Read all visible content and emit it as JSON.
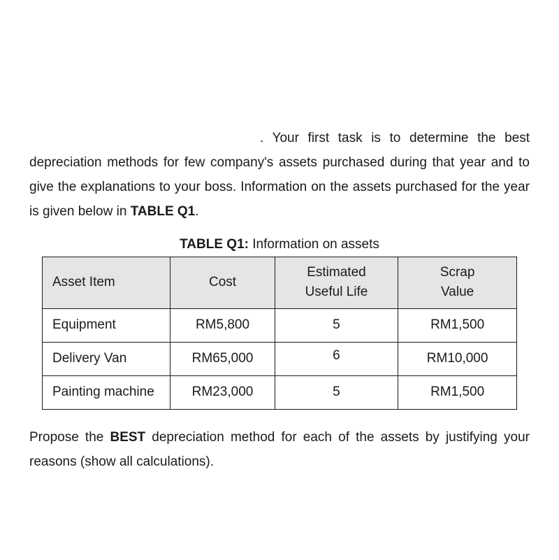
{
  "paragraphs": {
    "intro_lead": ". Your first task is to determine the best depreciation methods for few company's assets purchased during that year and to give the explanations to your boss. Information on the assets purchased for the year is given below in ",
    "intro_table_ref": "TABLE Q1",
    "intro_tail": ".",
    "prompt_lead": "Propose the ",
    "prompt_bold": "BEST",
    "prompt_tail": " depreciation method for each of the assets by justifying your reasons (show all calculations)."
  },
  "table": {
    "caption_bold": "TABLE Q1:",
    "caption_rest": " Information on assets",
    "columns": [
      "Asset Item",
      "Cost",
      "Estimated\nUseful Life",
      "Scrap\nValue"
    ],
    "header_bg": "#e5e5e5",
    "border_color": "#1a1a1a",
    "col_align": [
      "left",
      "center",
      "center",
      "center"
    ],
    "rows": [
      [
        "Equipment",
        "RM5,800",
        "5",
        "RM1,500"
      ],
      [
        "Delivery Van",
        "RM65,000",
        "6",
        "RM10,000"
      ],
      [
        "Painting machine",
        "RM23,000",
        "5",
        "RM1,500"
      ]
    ]
  },
  "style": {
    "page_bg": "#ffffff",
    "text_color": "#1a1a1a",
    "font_size_body": 19,
    "line_height": 1.85
  }
}
